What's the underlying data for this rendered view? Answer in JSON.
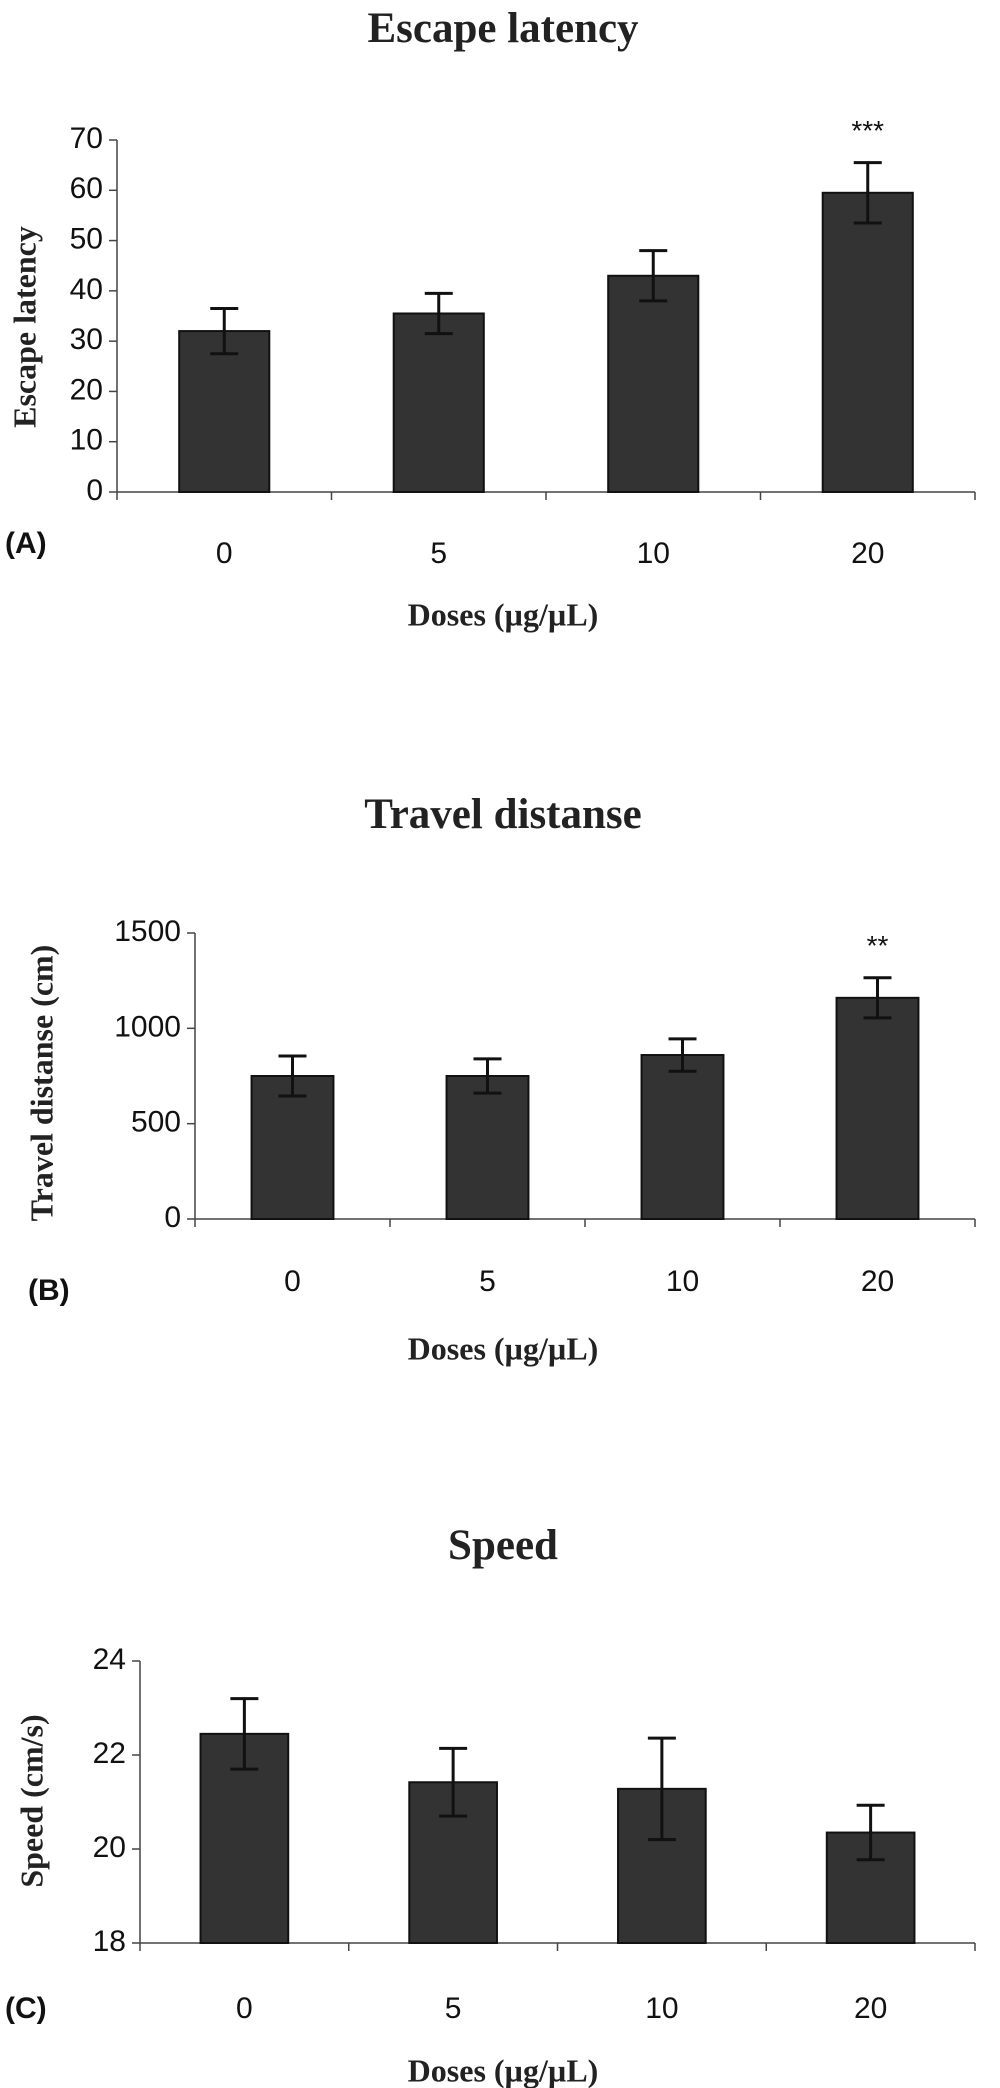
{
  "chart_data": [
    {
      "type": "bar",
      "panel_label": "(A)",
      "title": "Escape latency",
      "xlabel": "Doses (µg/µL)",
      "ylabel": "Escape latency",
      "categories": [
        "0",
        "5",
        "10",
        "20"
      ],
      "values": [
        32,
        35.5,
        43,
        59.5
      ],
      "errors": [
        4.5,
        4,
        5,
        6
      ],
      "significance": [
        "",
        "",
        "",
        "***"
      ],
      "ylim": [
        0,
        70
      ],
      "yticks": [
        0,
        10,
        20,
        30,
        40,
        50,
        60,
        70
      ],
      "grid": false,
      "legend": "none"
    },
    {
      "type": "bar",
      "panel_label": "(B)",
      "title": "Travel distanse",
      "xlabel": "Doses (µg/µL)",
      "ylabel": "Travel distanse (cm)",
      "categories": [
        "0",
        "5",
        "10",
        "20"
      ],
      "values": [
        750,
        750,
        860,
        1160
      ],
      "errors": [
        105,
        90,
        85,
        105
      ],
      "significance": [
        "",
        "",
        "",
        "**"
      ],
      "ylim": [
        0,
        1500
      ],
      "yticks": [
        0,
        500,
        1000,
        1500
      ],
      "grid": false,
      "legend": "none"
    },
    {
      "type": "bar",
      "panel_label": "(C)",
      "title": "Speed",
      "xlabel": "Doses (µg/µL)",
      "ylabel": "Speed (cm/s)",
      "categories": [
        "0",
        "5",
        "10",
        "20"
      ],
      "values": [
        22.45,
        21.42,
        21.28,
        20.35
      ],
      "errors": [
        0.75,
        0.72,
        1.08,
        0.58
      ],
      "significance": [
        "",
        "",
        "",
        ""
      ],
      "ylim": [
        18,
        24
      ],
      "yticks": [
        18,
        20,
        22,
        24
      ],
      "grid": false,
      "legend": "none"
    }
  ]
}
